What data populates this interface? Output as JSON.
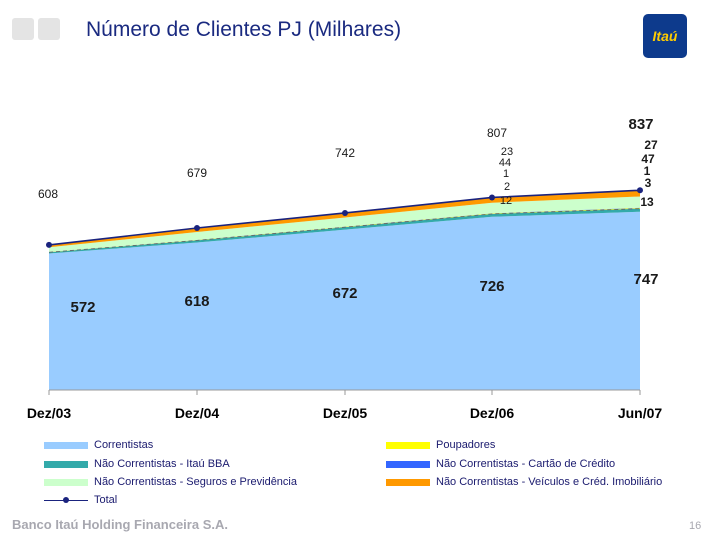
{
  "title": "Número de Clientes PJ  (Milhares)",
  "logo_text": "Itaú",
  "footer": "Banco Itaú Holding Financeira S.A.",
  "page_number": "16",
  "colors": {
    "correntistas": "#99ccff",
    "itau_bba": "#33aaaa",
    "seguros": "#ccffcc",
    "total": "#1a237e",
    "poupadores": "#ffff00",
    "cartao": "#3366ff",
    "veiculos": "#ff9900"
  },
  "chart_data": {
    "type": "area",
    "title": "Número de Clientes PJ  (Milhares)",
    "categories": [
      "Dez/03",
      "Dez/04",
      "Dez/05",
      "Dez/06",
      "Jun/07"
    ],
    "ylim": [
      0,
      1000
    ],
    "series": [
      {
        "key": "correntistas",
        "name": "Correntistas",
        "values": [
          572,
          618,
          672,
          726,
          747
        ],
        "labels": [
          "572",
          "618",
          "672",
          "726",
          "747"
        ]
      },
      {
        "key": "itau_bba",
        "name": "Não Correntistas - Itaú BBA",
        "values": [
          null,
          null,
          null,
          12,
          13
        ],
        "labels": [
          "",
          "",
          "",
          "12",
          "13"
        ]
      },
      {
        "key": "poupadores",
        "name": "Poupadores",
        "values": [
          null,
          null,
          null,
          2,
          3
        ],
        "labels": [
          "",
          "",
          "",
          "2",
          "3"
        ]
      },
      {
        "key": "cartao",
        "name": "Não Correntistas - Cartão de Crédito",
        "values": [
          null,
          null,
          null,
          1,
          1
        ],
        "labels": [
          "",
          "",
          "",
          "1",
          "1"
        ]
      },
      {
        "key": "seguros",
        "name": "Não Correntistas - Seguros e Previdência",
        "values": [
          null,
          null,
          null,
          44,
          47
        ],
        "labels": [
          "",
          "",
          "",
          "44",
          "47"
        ]
      },
      {
        "key": "veiculos",
        "name": "Não Correntistas - Veículos e Créd. Imobiliário",
        "values": [
          null,
          null,
          null,
          23,
          27
        ],
        "labels": [
          "",
          "",
          "",
          "23",
          "27"
        ]
      }
    ],
    "total": {
      "name": "Total",
      "values": [
        608,
        679,
        742,
        807,
        837
      ],
      "labels": [
        "608",
        "679",
        "742",
        "807",
        "837"
      ]
    }
  },
  "legend": {
    "correntistas": "Correntistas",
    "itau_bba": "Não Correntistas - Itaú BBA",
    "seguros": "Não Correntistas - Seguros e Previdência",
    "total": "Total",
    "poupadores": "Poupadores",
    "cartao": "Não Correntistas - Cartão de Crédito",
    "veiculos": "Não Correntistas - Veículos e Créd. Imobiliário"
  }
}
